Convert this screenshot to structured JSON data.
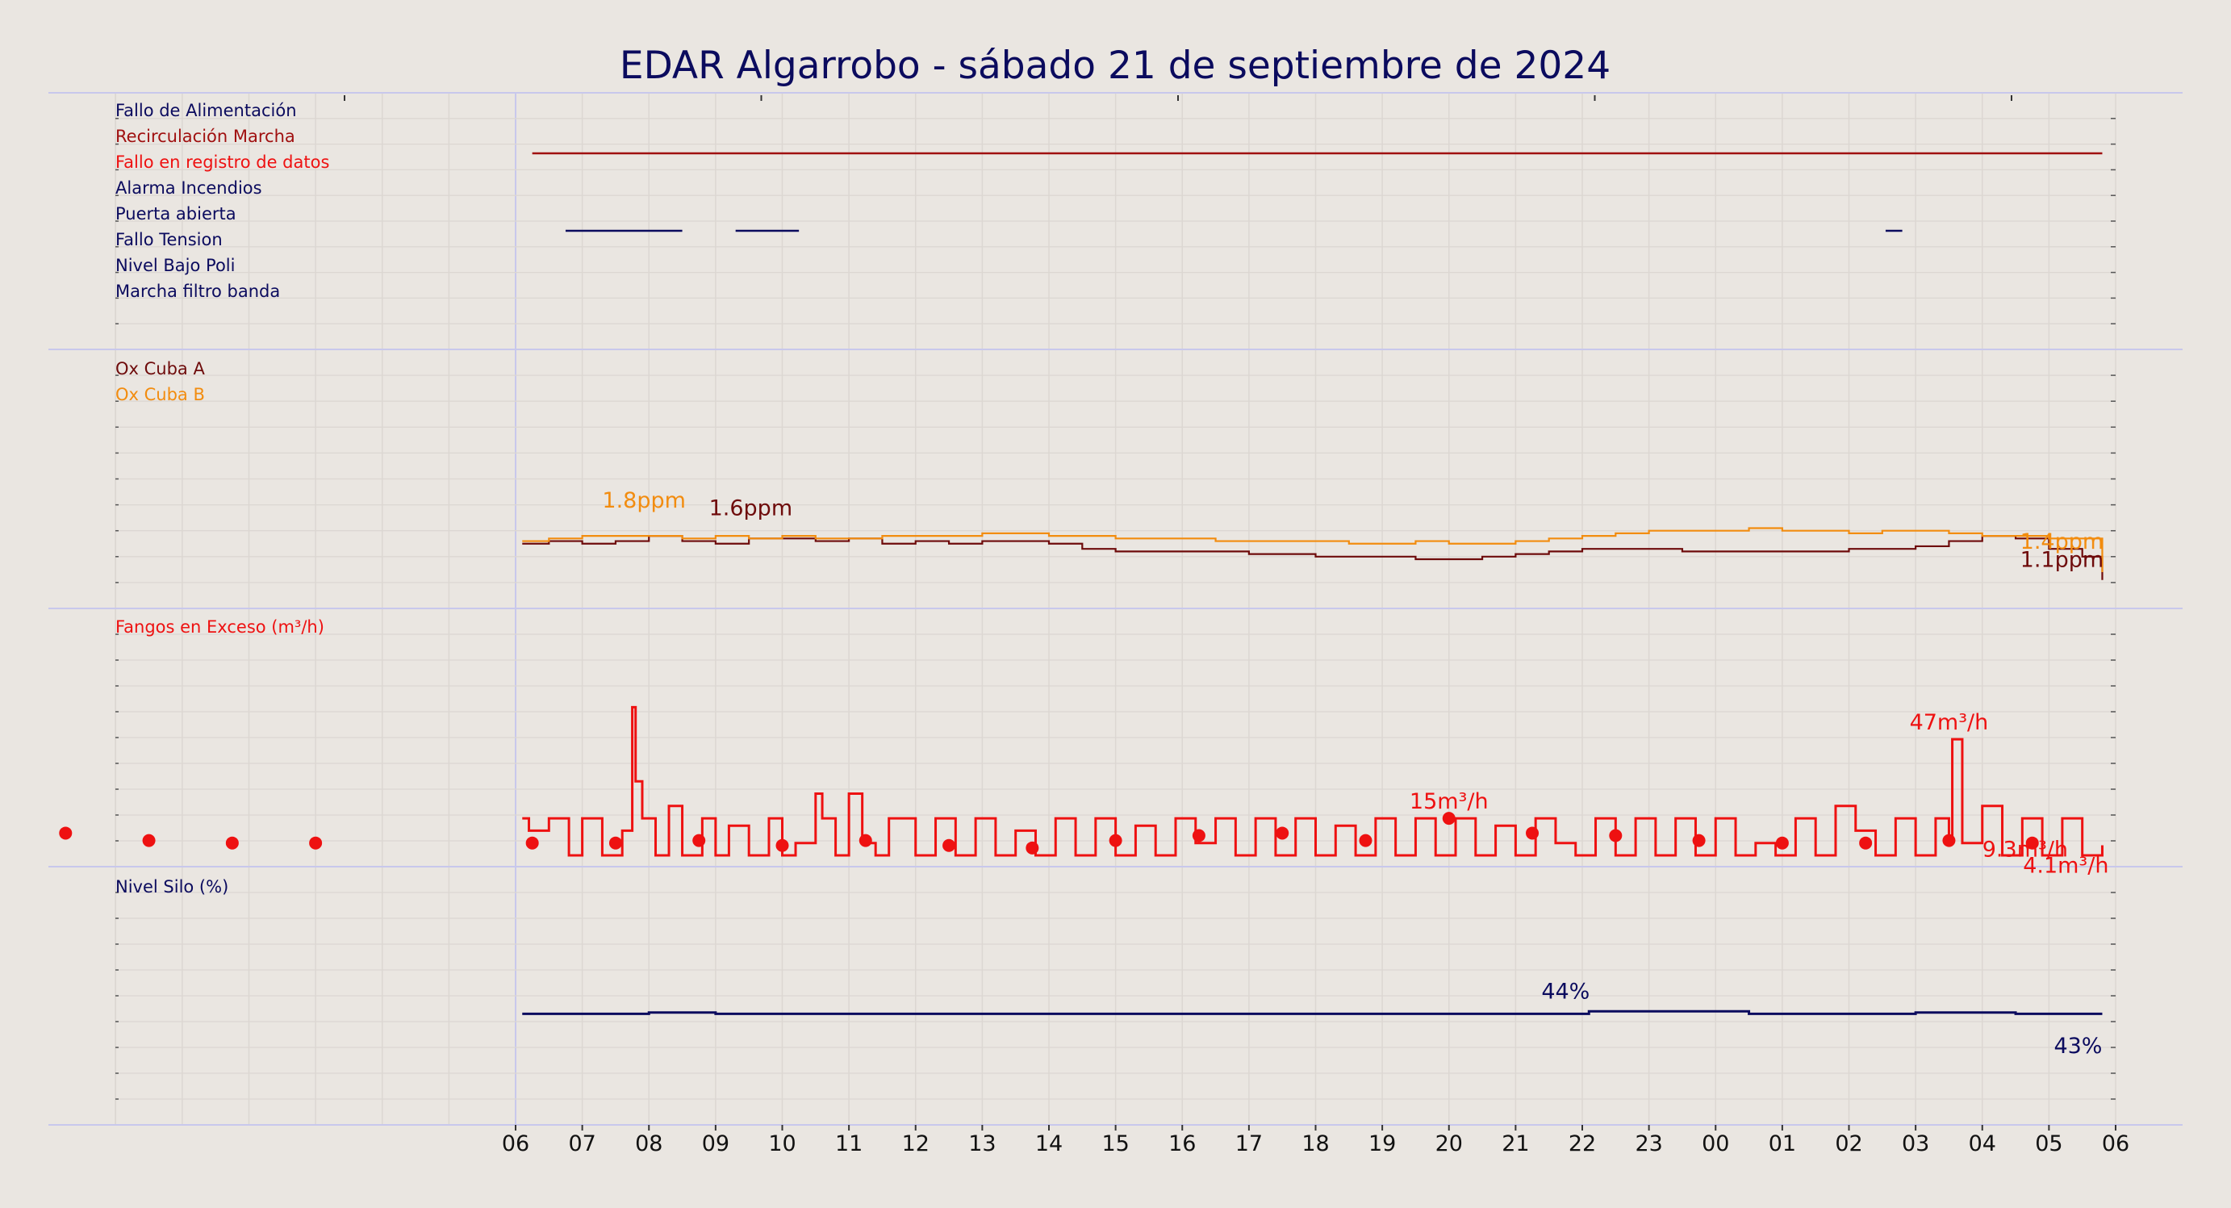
{
  "title": "EDAR Algarrobo   -   sábado 21 de septiembre de 2024",
  "colors": {
    "background": "#eae6e1",
    "navy": "#0b0b5e",
    "darkred": "#a01010",
    "red": "#ee1111",
    "maroon": "#6e0b0b",
    "orange": "#f28c0f",
    "grid": "#dcd7d2",
    "divider": "#c8c8ec"
  },
  "chart_data": [
    {
      "type": "line",
      "panel": "alarms",
      "x_ticks": [
        "06",
        "07",
        "08",
        "09",
        "10",
        "11",
        "12",
        "13",
        "14",
        "15",
        "16",
        "17",
        "18",
        "19",
        "20",
        "21",
        "22",
        "23",
        "00",
        "01",
        "02",
        "03",
        "04",
        "05",
        "06"
      ],
      "series": [
        {
          "name": "Fallo de Alimentación",
          "color": "#0b0b5e",
          "on_intervals": []
        },
        {
          "name": "Recirculación Marcha",
          "color": "#a01010",
          "on_intervals": [
            [
              6.25,
              29.8
            ]
          ]
        },
        {
          "name": "Fallo en registro de datos",
          "color": "#ee1111",
          "on_intervals": []
        },
        {
          "name": "Alarma Incendios",
          "color": "#0b0b5e",
          "on_intervals": []
        },
        {
          "name": "Puerta abierta",
          "color": "#0b0b5e",
          "on_intervals": [
            [
              6.75,
              8.5
            ],
            [
              9.3,
              10.25
            ],
            [
              26.55,
              26.8
            ]
          ]
        },
        {
          "name": "Fallo Tension",
          "color": "#0b0b5e",
          "on_intervals": []
        },
        {
          "name": "Nivel Bajo Poli",
          "color": "#0b0b5e",
          "on_intervals": []
        },
        {
          "name": "Marcha filtro banda",
          "color": "#0b0b5e",
          "on_intervals": []
        }
      ]
    },
    {
      "type": "line",
      "panel": "oxygen",
      "unit": "ppm",
      "ylim": [
        0,
        10
      ],
      "series": [
        {
          "name": "Ox Cuba A",
          "color": "#6e0b0b",
          "x": [
            6.1,
            6.5,
            7.0,
            7.5,
            8.0,
            8.5,
            9.0,
            9.5,
            10.0,
            10.5,
            11.0,
            11.5,
            12.0,
            12.5,
            13.0,
            13.5,
            14.0,
            14.5,
            15.0,
            15.5,
            16.0,
            16.5,
            17.0,
            17.5,
            18.0,
            18.5,
            19.0,
            19.5,
            20.0,
            20.5,
            21.0,
            21.5,
            22.0,
            22.5,
            23.0,
            23.5,
            24.0,
            24.5,
            25.0,
            25.5,
            26.0,
            26.5,
            27.0,
            27.5,
            28.0,
            28.5,
            29.0,
            29.5,
            29.8
          ],
          "y": [
            2.5,
            2.6,
            2.5,
            2.6,
            2.8,
            2.6,
            2.5,
            2.7,
            2.7,
            2.6,
            2.7,
            2.5,
            2.6,
            2.5,
            2.6,
            2.6,
            2.5,
            2.3,
            2.2,
            2.2,
            2.2,
            2.2,
            2.1,
            2.1,
            2.0,
            2.0,
            2.0,
            1.9,
            1.9,
            2.0,
            2.1,
            2.2,
            2.3,
            2.3,
            2.3,
            2.2,
            2.2,
            2.2,
            2.2,
            2.2,
            2.3,
            2.3,
            2.4,
            2.6,
            2.8,
            2.7,
            2.3,
            2.0,
            1.1
          ]
        },
        {
          "name": "Ox Cuba B",
          "color": "#f28c0f",
          "x": [
            6.1,
            6.5,
            7.0,
            7.5,
            8.0,
            8.5,
            9.0,
            9.5,
            10.0,
            10.5,
            11.0,
            11.5,
            12.0,
            12.5,
            13.0,
            13.5,
            14.0,
            14.5,
            15.0,
            15.5,
            16.0,
            16.5,
            17.0,
            17.5,
            18.0,
            18.5,
            19.0,
            19.5,
            20.0,
            20.5,
            21.0,
            21.5,
            22.0,
            22.5,
            23.0,
            23.5,
            24.0,
            24.5,
            25.0,
            25.5,
            26.0,
            26.5,
            27.0,
            27.5,
            28.0,
            28.5,
            29.0,
            29.5,
            29.8
          ],
          "y": [
            2.6,
            2.7,
            2.8,
            2.8,
            2.8,
            2.7,
            2.8,
            2.7,
            2.8,
            2.7,
            2.7,
            2.8,
            2.8,
            2.8,
            2.9,
            2.9,
            2.8,
            2.8,
            2.7,
            2.7,
            2.7,
            2.6,
            2.6,
            2.6,
            2.6,
            2.5,
            2.5,
            2.6,
            2.5,
            2.5,
            2.6,
            2.7,
            2.8,
            2.9,
            3.0,
            3.0,
            3.0,
            3.1,
            3.0,
            3.0,
            2.9,
            3.0,
            3.0,
            2.9,
            2.8,
            2.8,
            2.7,
            2.7,
            1.4
          ]
        }
      ],
      "annotations": [
        {
          "text": "1.8ppm",
          "series": "Ox Cuba B",
          "x": 7.3,
          "y": 3.9
        },
        {
          "text": "1.6ppm",
          "series": "Ox Cuba A",
          "x": 8.9,
          "y": 3.6
        },
        {
          "text": "1.4ppm",
          "series": "Ox Cuba B",
          "x": 29.7,
          "y": 2.3
        },
        {
          "text": "1.1ppm",
          "series": "Ox Cuba A",
          "x": 29.7,
          "y": 1.6
        }
      ]
    },
    {
      "type": "line",
      "panel": "fangos",
      "unit": "m³/h",
      "ylim": [
        0,
        100
      ],
      "series": [
        {
          "name": "Fangos en Exceso (m³/h)",
          "color": "#ee1111",
          "x": [
            6.1,
            6.2,
            6.5,
            6.8,
            7.0,
            7.3,
            7.6,
            7.75,
            7.8,
            7.9,
            8.1,
            8.3,
            8.5,
            8.8,
            9.0,
            9.2,
            9.5,
            9.8,
            10.0,
            10.2,
            10.5,
            10.6,
            10.8,
            11.0,
            11.2,
            11.4,
            11.6,
            12.0,
            12.3,
            12.6,
            12.9,
            13.2,
            13.5,
            13.8,
            14.1,
            14.4,
            14.7,
            15.0,
            15.3,
            15.6,
            15.9,
            16.2,
            16.5,
            16.8,
            17.1,
            17.4,
            17.7,
            18.0,
            18.3,
            18.6,
            18.9,
            19.2,
            19.5,
            19.8,
            20.1,
            20.4,
            20.7,
            21.0,
            21.3,
            21.6,
            21.9,
            22.2,
            22.5,
            22.8,
            23.1,
            23.4,
            23.7,
            24.0,
            24.3,
            24.6,
            24.9,
            25.2,
            25.5,
            25.8,
            26.1,
            26.4,
            26.7,
            27.0,
            27.3,
            27.5,
            27.55,
            27.7,
            28.0,
            28.3,
            28.6,
            28.9,
            29.2,
            29.5,
            29.8
          ],
          "y": [
            15,
            10,
            15,
            0,
            15,
            0,
            10,
            60,
            30,
            15,
            0,
            20,
            0,
            15,
            0,
            12,
            0,
            15,
            0,
            5,
            25,
            15,
            0,
            25,
            5,
            0,
            15,
            0,
            15,
            0,
            15,
            0,
            10,
            0,
            15,
            0,
            15,
            0,
            12,
            0,
            15,
            5,
            15,
            0,
            15,
            0,
            15,
            0,
            12,
            0,
            15,
            0,
            15,
            0,
            15,
            0,
            12,
            0,
            15,
            5,
            0,
            15,
            0,
            15,
            0,
            15,
            0,
            15,
            0,
            5,
            0,
            15,
            0,
            20,
            10,
            0,
            15,
            0,
            15,
            5,
            47,
            5,
            20,
            0,
            15,
            0,
            15,
            0,
            4.1
          ]
        }
      ],
      "daily_markers": {
        "x": [
          -0.75,
          0.5,
          1.75,
          3.0,
          6.25,
          7.5,
          8.75,
          10.0,
          11.25,
          12.5,
          13.75,
          15.0,
          16.25,
          17.5,
          18.75,
          20.0,
          21.25,
          22.5,
          23.75,
          25.0,
          26.25,
          27.5,
          28.75
        ],
        "y": [
          9,
          6,
          5,
          5,
          5,
          5,
          6,
          4,
          6,
          4,
          3,
          6,
          8,
          9,
          6,
          15,
          9,
          8,
          6,
          5,
          5,
          6,
          5
        ]
      },
      "annotations": [
        {
          "text": "47m³/h",
          "x": 27.5,
          "y": 47
        },
        {
          "text": "15m³/h",
          "x": 20.0,
          "y": 15
        },
        {
          "text": "9.3m³/h",
          "x": 28.0,
          "y": 9.3
        },
        {
          "text": "4.1m³/h",
          "x": 29.8,
          "y": 4.1
        }
      ]
    },
    {
      "type": "line",
      "panel": "silo",
      "unit": "%",
      "ylim": [
        0,
        100
      ],
      "series": [
        {
          "name": "Nivel Silo (%)",
          "color": "#0b0b5e",
          "x": [
            6.1,
            8.0,
            9.0,
            10.0,
            12.0,
            14.0,
            16.0,
            18.0,
            20.0,
            21.5,
            22.1,
            23.0,
            24.0,
            24.5,
            26.0,
            27.0,
            27.5,
            28.5,
            29.8
          ],
          "y": [
            43,
            43.5,
            43,
            43,
            43,
            43,
            43,
            43,
            43,
            43,
            44,
            44,
            44,
            43,
            43,
            43.5,
            43.5,
            43,
            43
          ]
        }
      ],
      "annotations": [
        {
          "text": "44%",
          "x": 21.75,
          "y": 47
        },
        {
          "text": "43%",
          "x": 29.8,
          "y": 36
        }
      ]
    }
  ]
}
